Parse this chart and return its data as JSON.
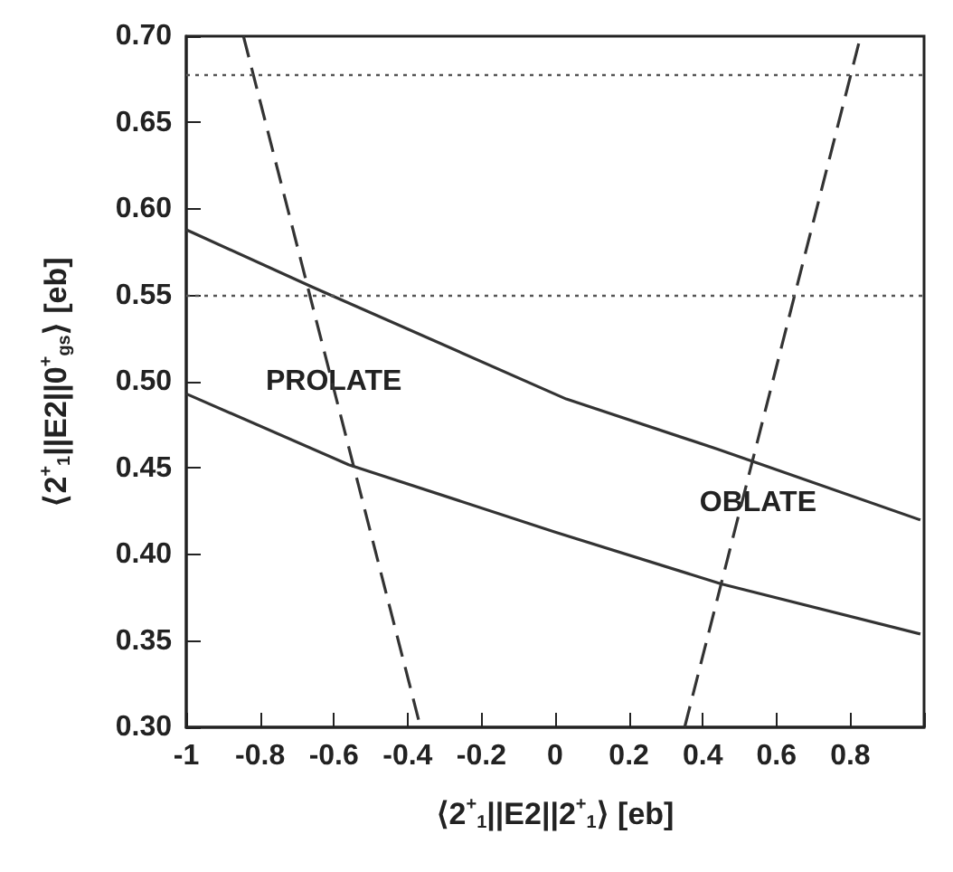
{
  "chart_data": {
    "type": "line",
    "xlabel": "⟨2$^{+}$$_{1}$||E2||2$^{+}$$_{1}$⟩ [eb]",
    "ylabel": "⟨2$^{+}$$_{1}$||E2||0$^{+}$$_{gs}$⟩ [eb]",
    "xlim": [
      -1,
      1
    ],
    "xticks": [
      -1,
      -0.8,
      -0.6,
      -0.4,
      -0.2,
      0,
      0.2,
      0.4,
      0.6,
      0.8,
      {
        "value": 1,
        "label": null
      }
    ],
    "ylim": [
      0.3,
      0.7
    ],
    "yticks": [
      {
        "value": 0.3,
        "label": "0.30"
      },
      {
        "value": 0.35,
        "label": "0.35"
      },
      {
        "value": 0.4,
        "label": "0.40"
      },
      {
        "value": 0.45,
        "label": "0.45"
      },
      {
        "value": 0.5,
        "label": "0.50"
      },
      {
        "value": 0.55,
        "label": "0.55"
      },
      {
        "value": 0.6,
        "label": "0.60"
      },
      {
        "value": 0.65,
        "label": "0.65"
      },
      {
        "value": 0.7,
        "label": "0.70"
      }
    ],
    "series": [
      {
        "color": "#333333",
        "line_style": "solid",
        "x": [
          -1,
          -0.66,
          0.03,
          0.44,
          0.99
        ],
        "values": [
          0.588,
          0.555,
          0.49,
          0.461,
          0.42
        ]
      },
      {
        "color": "#333333",
        "line_style": "solid",
        "x": [
          -1,
          -0.56,
          0,
          0.45,
          0.99
        ],
        "values": [
          0.493,
          0.452,
          0.413,
          0.383,
          0.354
        ]
      },
      {
        "color": "#333333",
        "line_style": "dashed",
        "x": [
          -0.845,
          -0.365
        ],
        "values": [
          0.7,
          0.3
        ]
      },
      {
        "color": "#333333",
        "line_style": "dashed",
        "x": [
          0.351,
          0.828
        ],
        "values": [
          0.3,
          0.7
        ]
      }
    ],
    "ref_lines": [
      {
        "axis": "y",
        "value": 0.678,
        "color": "#555555",
        "line_style": "dotted"
      },
      {
        "axis": "y",
        "value": 0.55,
        "color": "#555555",
        "line_style": "dotted"
      }
    ],
    "annotations": [
      "PROLATE",
      "OBLATE"
    ],
    "marker": "none",
    "grid": false
  }
}
